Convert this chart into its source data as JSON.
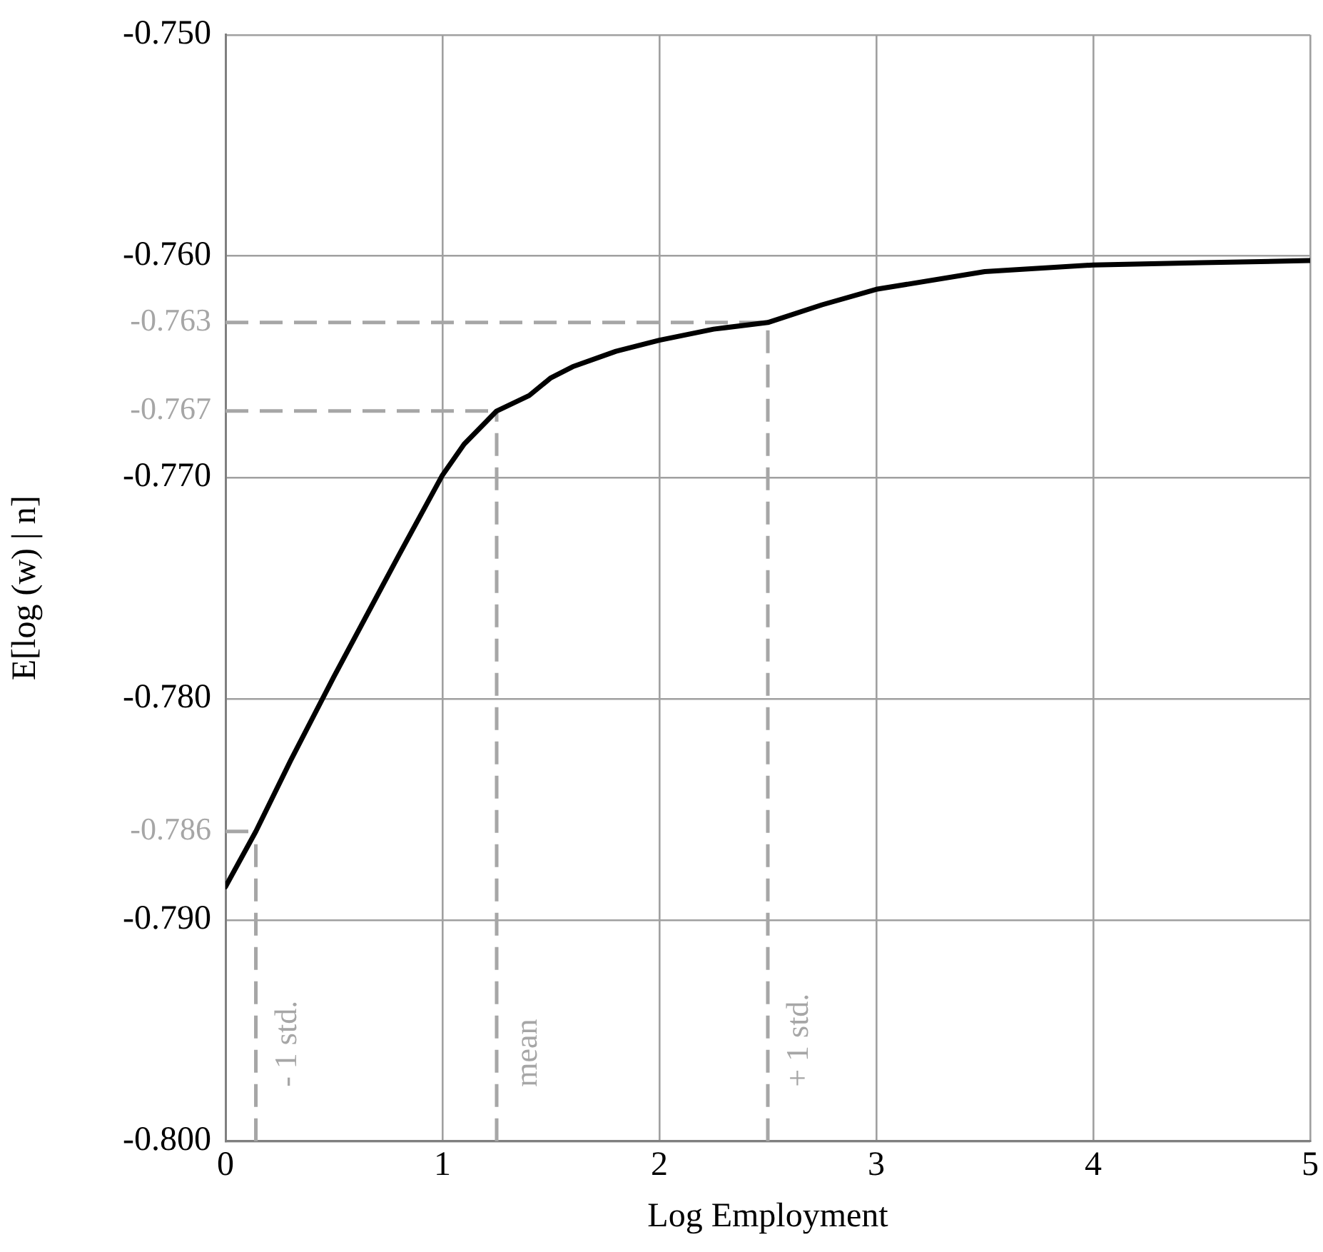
{
  "chart_data": {
    "type": "line",
    "xlabel": "Log Employment",
    "ylabel": "E[log (w) | n]",
    "xlim": [
      0,
      5
    ],
    "xticks": [
      0,
      1,
      2,
      3,
      4,
      5
    ],
    "ylim": [
      -0.8,
      -0.75
    ],
    "yticks": [
      {
        "value": -0.8,
        "label": "-0.800"
      },
      {
        "value": -0.79,
        "label": "-0.790"
      },
      {
        "value": -0.78,
        "label": "-0.780"
      },
      {
        "value": -0.77,
        "label": "-0.770"
      },
      {
        "value": -0.76,
        "label": "-0.760"
      },
      {
        "value": -0.75,
        "label": "-0.750"
      }
    ],
    "grid": true,
    "legend": false,
    "marker": "none",
    "line_style": "solid",
    "series": [
      {
        "color": "#000000",
        "x": [
          0,
          0.14,
          0.3,
          0.5,
          0.8,
          1.0,
          1.1,
          1.25,
          1.4,
          1.5,
          1.6,
          1.8,
          2.0,
          2.25,
          2.5,
          2.75,
          3.0,
          3.5,
          4.0,
          4.5,
          5.0
        ],
        "values": [
          -0.7885,
          -0.786,
          -0.7828,
          -0.779,
          -0.7735,
          -0.7699,
          -0.7685,
          -0.767,
          -0.7663,
          -0.7655,
          -0.765,
          -0.7643,
          -0.7638,
          -0.7633,
          -0.763,
          -0.7622,
          -0.7615,
          -0.7607,
          -0.7604,
          -0.7603,
          -0.7602
        ]
      }
    ],
    "ref_lines": [
      {
        "axis": "y",
        "value": -0.786,
        "label": "-0.786",
        "color": "#a6a6a6",
        "line_style": "dashed"
      },
      {
        "axis": "y",
        "value": -0.767,
        "label": "-0.767",
        "color": "#a6a6a6",
        "line_style": "dashed"
      },
      {
        "axis": "y",
        "value": -0.763,
        "label": "-0.763",
        "color": "#a6a6a6",
        "line_style": "dashed"
      },
      {
        "axis": "x",
        "value": 0.14,
        "label": "- 1 std.",
        "color": "#a6a6a6",
        "line_style": "dashed"
      },
      {
        "axis": "x",
        "value": 1.25,
        "label": "mean",
        "color": "#a6a6a6",
        "line_style": "dashed"
      },
      {
        "axis": "x",
        "value": 2.5,
        "label": "+ 1 std.",
        "color": "#a6a6a6",
        "line_style": "dashed"
      }
    ]
  }
}
